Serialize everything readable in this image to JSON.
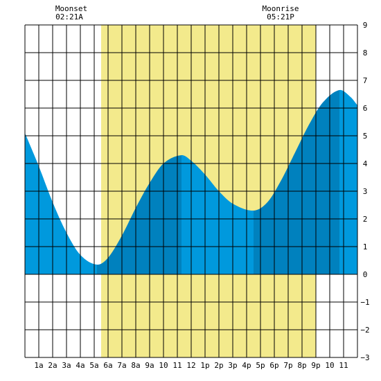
{
  "chart_data": {
    "type": "area",
    "title": "",
    "xlabel": "",
    "ylabel": "",
    "x_tick_labels": [
      "1a",
      "2a",
      "3a",
      "4a",
      "5a",
      "6a",
      "7a",
      "8a",
      "9a",
      "10",
      "11",
      "12",
      "1p",
      "2p",
      "3p",
      "4p",
      "5p",
      "6p",
      "7p",
      "8p",
      "9p",
      "10",
      "11"
    ],
    "xlim_hours": [
      0,
      24
    ],
    "ylim": [
      -3,
      9
    ],
    "y_ticks": [
      -3,
      -2,
      -1,
      0,
      1,
      2,
      3,
      4,
      5,
      6,
      7,
      8,
      9
    ],
    "grid": true,
    "daylight": {
      "start_hour": 5.5,
      "end_hour": 21
    },
    "annotations": [
      {
        "id": "moonset",
        "label": "Moonset",
        "time": "02:21A",
        "hour": 2.35
      },
      {
        "id": "moonrise",
        "label": "Moonrise",
        "time": "05:21P",
        "hour": 17.35
      }
    ],
    "tide_extremes": [
      {
        "hour": 5.2,
        "height": 0.35,
        "kind": "low"
      },
      {
        "hour": 11.3,
        "height": 4.3,
        "kind": "high"
      },
      {
        "hour": 16.5,
        "height": 2.3,
        "kind": "low"
      },
      {
        "hour": 22.7,
        "height": 6.65,
        "kind": "high"
      }
    ],
    "series": [
      {
        "values": [
          {
            "x": 0.0,
            "y": 5.1
          },
          {
            "x": 1.0,
            "y": 3.9
          },
          {
            "x": 2.0,
            "y": 2.6
          },
          {
            "x": 3.0,
            "y": 1.5
          },
          {
            "x": 4.0,
            "y": 0.7
          },
          {
            "x": 5.2,
            "y": 0.35
          },
          {
            "x": 6.0,
            "y": 0.6
          },
          {
            "x": 7.0,
            "y": 1.4
          },
          {
            "x": 8.0,
            "y": 2.4
          },
          {
            "x": 9.0,
            "y": 3.3
          },
          {
            "x": 10.0,
            "y": 4.0
          },
          {
            "x": 11.3,
            "y": 4.3
          },
          {
            "x": 12.0,
            "y": 4.1
          },
          {
            "x": 13.0,
            "y": 3.6
          },
          {
            "x": 14.0,
            "y": 3.0
          },
          {
            "x": 15.0,
            "y": 2.55
          },
          {
            "x": 16.5,
            "y": 2.3
          },
          {
            "x": 17.5,
            "y": 2.6
          },
          {
            "x": 18.5,
            "y": 3.4
          },
          {
            "x": 19.5,
            "y": 4.4
          },
          {
            "x": 20.5,
            "y": 5.4
          },
          {
            "x": 21.5,
            "y": 6.2
          },
          {
            "x": 22.7,
            "y": 6.65
          },
          {
            "x": 23.5,
            "y": 6.4
          },
          {
            "x": 24.0,
            "y": 6.1
          }
        ]
      }
    ],
    "colors": {
      "daylight": "#f3ea8c",
      "tide_light": "#0099dd",
      "tide_dark": "#0081be",
      "grid": "#000000"
    }
  }
}
